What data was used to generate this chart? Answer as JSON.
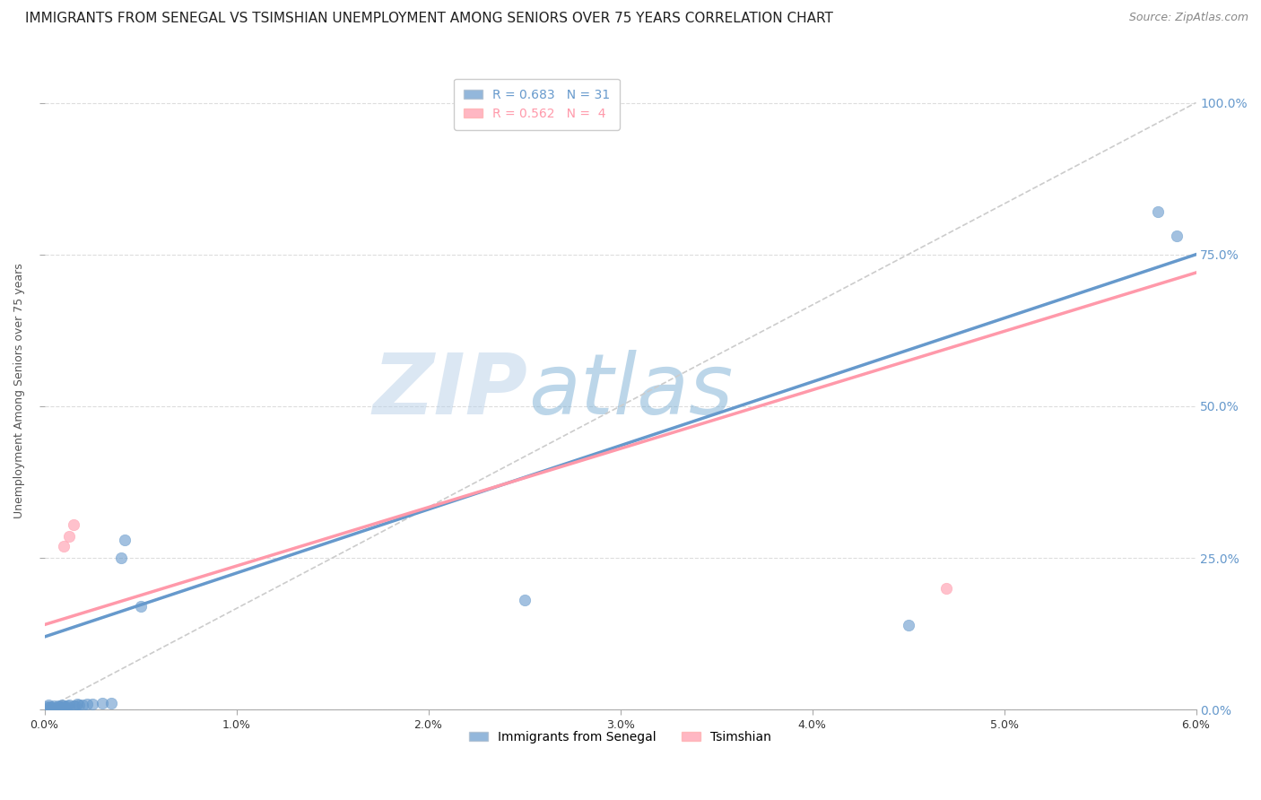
{
  "title": "IMMIGRANTS FROM SENEGAL VS TSIMSHIAN UNEMPLOYMENT AMONG SENIORS OVER 75 YEARS CORRELATION CHART",
  "source": "Source: ZipAtlas.com",
  "ylabel": "Unemployment Among Seniors over 75 years",
  "xlabel_blue": "Immigrants from Senegal",
  "xlabel_pink": "Tsimshian",
  "R_blue": 0.683,
  "N_blue": 31,
  "R_pink": 0.562,
  "N_pink": 4,
  "xmin": 0.0,
  "xmax": 0.06,
  "ymin": 0.0,
  "ymax": 1.05,
  "blue_color": "#6699CC",
  "pink_color": "#FF99AA",
  "blue_scatter": [
    [
      0.0001,
      0.005
    ],
    [
      0.0002,
      0.003
    ],
    [
      0.0002,
      0.008
    ],
    [
      0.0003,
      0.005
    ],
    [
      0.0004,
      0.003
    ],
    [
      0.0005,
      0.007
    ],
    [
      0.0006,
      0.004
    ],
    [
      0.0007,
      0.006
    ],
    [
      0.0008,
      0.005
    ],
    [
      0.0009,
      0.008
    ],
    [
      0.001,
      0.007
    ],
    [
      0.001,
      0.004
    ],
    [
      0.0011,
      0.005
    ],
    [
      0.0012,
      0.006
    ],
    [
      0.0013,
      0.008
    ],
    [
      0.0015,
      0.006
    ],
    [
      0.0016,
      0.007
    ],
    [
      0.0017,
      0.009
    ],
    [
      0.0018,
      0.008
    ],
    [
      0.002,
      0.008
    ],
    [
      0.0022,
      0.009
    ],
    [
      0.0025,
      0.009
    ],
    [
      0.003,
      0.01
    ],
    [
      0.0035,
      0.01
    ],
    [
      0.004,
      0.25
    ],
    [
      0.0042,
      0.28
    ],
    [
      0.005,
      0.17
    ],
    [
      0.025,
      0.18
    ],
    [
      0.045,
      0.14
    ],
    [
      0.058,
      0.82
    ],
    [
      0.059,
      0.78
    ]
  ],
  "pink_scatter": [
    [
      0.001,
      0.27
    ],
    [
      0.0015,
      0.305
    ],
    [
      0.0013,
      0.285
    ],
    [
      0.047,
      0.2
    ]
  ],
  "blue_line_x": [
    0.0,
    0.06
  ],
  "blue_line_y": [
    0.12,
    0.75
  ],
  "pink_line_x": [
    0.0,
    0.06
  ],
  "pink_line_y": [
    0.14,
    0.72
  ],
  "diag_line_x": [
    0.0,
    0.06
  ],
  "diag_line_y": [
    0.0,
    1.0
  ],
  "watermark_zip": "ZIP",
  "watermark_atlas": "atlas",
  "watermark_color_zip": "#B8D0E8",
  "watermark_color_atlas": "#7BAFD4",
  "title_fontsize": 11,
  "axis_label_fontsize": 9,
  "tick_fontsize": 9,
  "legend_fontsize": 10,
  "source_fontsize": 9
}
